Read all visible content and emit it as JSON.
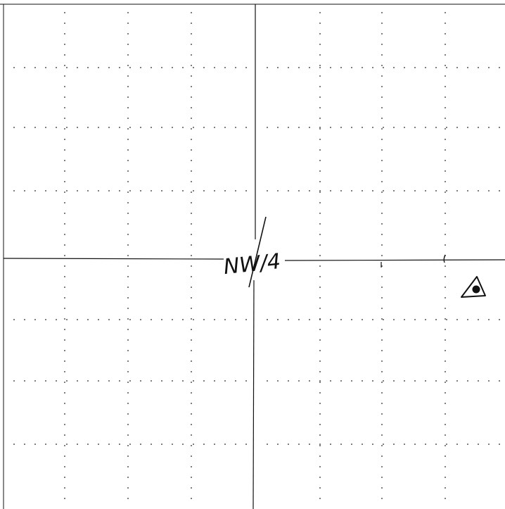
{
  "sheet": {
    "background_color": "#ffffff",
    "ink_color": "#111111",
    "grid_dot_color": "#222222"
  },
  "quarter_label": {
    "text": "NW/4"
  },
  "survey_marker": {
    "symbol": "triangle-with-dot",
    "icon": "survey-marker-icon"
  }
}
